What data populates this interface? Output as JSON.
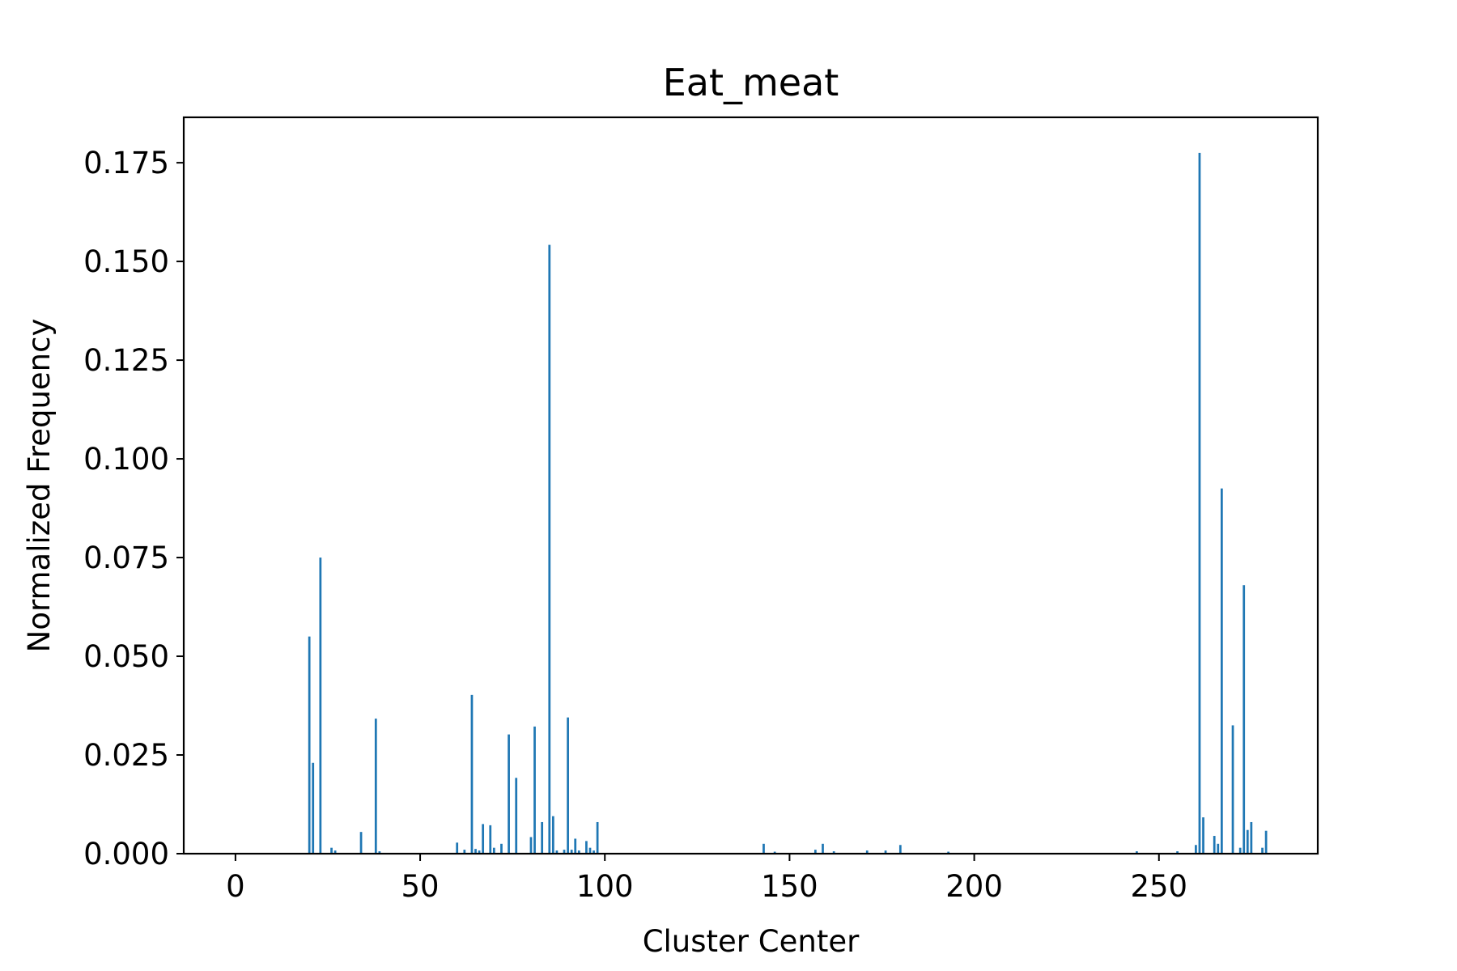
{
  "chart_data": {
    "type": "bar",
    "title": "Eat_meat",
    "xlabel": "Cluster Center",
    "ylabel": "Normalized Frequency",
    "xlim": [
      -14,
      293
    ],
    "ylim": [
      0,
      0.1865
    ],
    "xticks": [
      0,
      50,
      100,
      150,
      200,
      250
    ],
    "yticks": [
      0,
      0.025,
      0.05,
      0.075,
      0.1,
      0.125,
      0.15,
      0.175
    ],
    "ytick_labels": [
      "0.000",
      "0.025",
      "0.050",
      "0.075",
      "0.100",
      "0.125",
      "0.150",
      "0.175"
    ],
    "grid": false,
    "bar_color": "#1f77b4",
    "x": [
      20,
      21,
      23,
      26,
      27,
      34,
      38,
      39,
      60,
      62,
      64,
      65,
      66,
      67,
      69,
      70,
      72,
      74,
      76,
      80,
      81,
      83,
      85,
      86,
      87,
      89,
      90,
      91,
      92,
      93,
      95,
      96,
      97,
      98,
      143,
      146,
      157,
      159,
      162,
      171,
      176,
      180,
      193,
      244,
      255,
      260,
      261,
      262,
      265,
      266,
      267,
      270,
      272,
      273,
      274,
      275,
      278,
      279
    ],
    "values": [
      0.055,
      0.023,
      0.075,
      0.0015,
      0.0008,
      0.0055,
      0.0342,
      0.0006,
      0.0028,
      0.001,
      0.0402,
      0.0012,
      0.0008,
      0.0075,
      0.0072,
      0.0015,
      0.0025,
      0.0302,
      0.0192,
      0.0042,
      0.0322,
      0.008,
      0.1542,
      0.0095,
      0.0008,
      0.001,
      0.0345,
      0.001,
      0.0038,
      0.0008,
      0.0032,
      0.0015,
      0.0008,
      0.008,
      0.0025,
      0.0005,
      0.001,
      0.0025,
      0.0006,
      0.0008,
      0.0008,
      0.0022,
      0.0005,
      0.0006,
      0.0006,
      0.0022,
      0.1775,
      0.0092,
      0.0045,
      0.0025,
      0.0925,
      0.0325,
      0.0015,
      0.068,
      0.006,
      0.008,
      0.0015,
      0.0058
    ]
  }
}
